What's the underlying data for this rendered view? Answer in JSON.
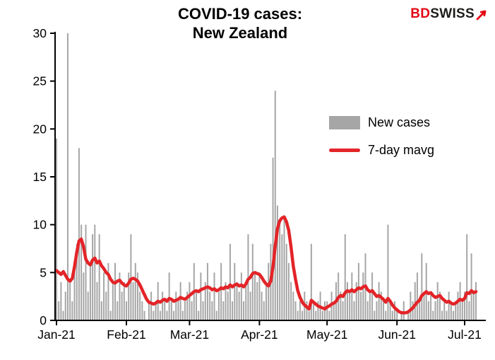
{
  "header": {
    "title_line1": "COVID-19 cases:",
    "title_line2": "New Zealand",
    "logo": {
      "part1": "BD",
      "part2": "SWISS",
      "part1_color": "#e30613",
      "part2_color": "#1d1d1b",
      "arrow_icon": "red-up-right-arrow"
    }
  },
  "chart_data": {
    "type": "bar",
    "title": "COVID-19 cases: New Zealand",
    "xlabel": "",
    "ylabel": "",
    "ylim": [
      0,
      30
    ],
    "y_ticks": [
      0,
      5,
      10,
      15,
      20,
      25,
      30
    ],
    "x_tick_labels": [
      "Jan-21",
      "Feb-21",
      "Mar-21",
      "Apr-21",
      "May-21",
      "Jun-21",
      "Jul-21"
    ],
    "x_tick_indices": [
      0,
      31,
      59,
      90,
      120,
      151,
      181
    ],
    "grid": false,
    "legend_position": "inside-upper-right",
    "mavg_window": 7,
    "series": [
      {
        "name": "New cases",
        "type": "bar",
        "color": "#a6a6a6",
        "values": [
          19,
          2,
          4,
          1,
          3,
          30,
          4,
          2,
          6,
          8,
          18,
          10,
          5,
          10,
          3,
          6,
          9,
          10,
          4,
          9,
          2,
          5,
          3,
          6,
          1,
          4,
          6,
          2,
          5,
          3,
          4,
          2,
          5,
          9,
          4,
          6,
          5,
          3,
          2,
          1,
          0,
          2,
          3,
          1,
          2,
          4,
          1,
          3,
          2,
          1,
          5,
          2,
          1,
          3,
          2,
          4,
          1,
          2,
          3,
          4,
          2,
          6,
          3,
          1,
          5,
          2,
          4,
          6,
          3,
          2,
          5,
          1,
          3,
          6,
          2,
          4,
          3,
          8,
          2,
          6,
          4,
          3,
          5,
          2,
          4,
          9,
          3,
          8,
          5,
          4,
          5,
          3,
          2,
          4,
          6,
          8,
          17,
          24,
          12,
          10,
          9,
          11,
          8,
          6,
          4,
          3,
          2,
          1,
          2,
          1,
          3,
          2,
          1,
          8,
          2,
          1,
          2,
          3,
          1,
          2,
          2,
          1,
          3,
          2,
          4,
          5,
          3,
          2,
          9,
          4,
          3,
          5,
          2,
          4,
          6,
          3,
          5,
          7,
          2,
          3,
          5,
          1,
          2,
          4,
          3,
          2,
          1,
          10,
          2,
          1,
          2,
          1,
          0,
          1,
          2,
          0,
          1,
          3,
          2,
          4,
          5,
          2,
          7,
          3,
          6,
          2,
          3,
          1,
          2,
          4,
          3,
          1,
          2,
          1,
          3,
          2,
          1,
          2,
          3,
          4,
          2,
          3,
          9,
          2,
          7,
          3,
          4
        ]
      },
      {
        "name": "7-day mavg",
        "type": "line",
        "color": "#e32428",
        "values": [
          5.2,
          5.0,
          4.8,
          5.1,
          4.7,
          4.3,
          4.1,
          4.4,
          5.6,
          7.1,
          8.3,
          8.5,
          7.7,
          6.4,
          6.0,
          5.8,
          6.3,
          6.5,
          6.0,
          6.2,
          5.7,
          5.4,
          5.0,
          4.8,
          4.3,
          4.0,
          3.9,
          4.1,
          4.2,
          3.9,
          3.7,
          3.6,
          3.9,
          4.3,
          4.4,
          4.3,
          4.1,
          3.7,
          3.2,
          2.7,
          2.2,
          1.9,
          1.8,
          1.7,
          1.8,
          2.0,
          1.9,
          2.1,
          2.2,
          2.0,
          2.3,
          2.2,
          2.0,
          2.1,
          2.2,
          2.4,
          2.3,
          2.2,
          2.4,
          2.6,
          2.8,
          3.0,
          3.1,
          3.0,
          3.2,
          3.3,
          3.4,
          3.5,
          3.4,
          3.2,
          3.3,
          3.1,
          3.2,
          3.4,
          3.3,
          3.5,
          3.4,
          3.7,
          3.5,
          3.7,
          3.8,
          3.6,
          3.7,
          3.5,
          3.8,
          4.3,
          4.5,
          4.9,
          5.0,
          4.9,
          4.8,
          4.5,
          4.1,
          3.8,
          3.6,
          4.1,
          5.6,
          7.8,
          9.6,
          10.4,
          10.7,
          10.8,
          10.3,
          9.4,
          7.7,
          5.7,
          4.3,
          3.1,
          2.4,
          1.9,
          1.6,
          1.4,
          1.2,
          2.1,
          1.9,
          1.7,
          1.5,
          1.4,
          1.3,
          1.2,
          1.4,
          1.5,
          1.7,
          1.8,
          2.0,
          2.4,
          2.6,
          2.5,
          2.9,
          3.1,
          3.0,
          3.2,
          3.0,
          3.2,
          3.4,
          3.3,
          3.5,
          3.6,
          3.2,
          3.0,
          3.1,
          2.8,
          2.5,
          2.6,
          2.4,
          2.2,
          1.9,
          2.3,
          2.0,
          1.6,
          1.3,
          1.1,
          0.9,
          0.8,
          0.8,
          0.8,
          0.9,
          1.1,
          1.3,
          1.6,
          1.9,
          2.1,
          2.6,
          2.8,
          3.0,
          2.8,
          2.9,
          2.6,
          2.4,
          2.5,
          2.6,
          2.3,
          2.1,
          1.9,
          2.0,
          1.8,
          1.7,
          1.8,
          2.0,
          2.2,
          2.1,
          2.3,
          2.9,
          2.8,
          3.1,
          2.9,
          3.0
        ]
      }
    ]
  }
}
